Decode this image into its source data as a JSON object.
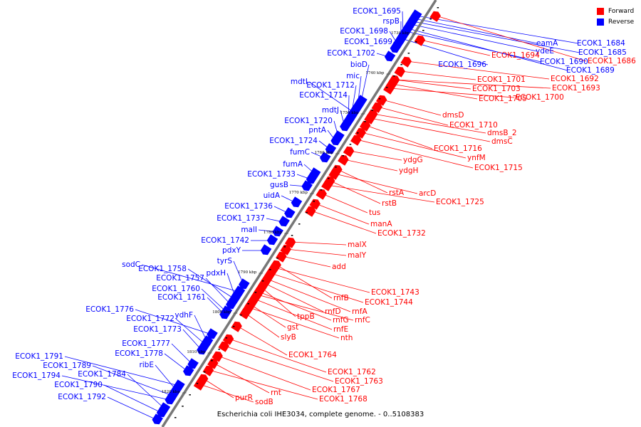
{
  "caption": "Escherichia coli IHE3034, complete genome. - 0..5108383",
  "legend": [
    {
      "label": "Forward",
      "color": "#ff0000"
    },
    {
      "label": "Reverse",
      "color": "#0000ff"
    }
  ],
  "ticks": [
    "1730 kbp",
    "1740 kbp",
    "1750 kbp",
    "1760 kbp",
    "1770 kbp",
    "1780 kbp",
    "1790 kbp",
    "1800 kbp",
    "1810 kbp",
    "1820 kbp"
  ],
  "genes": {
    "reverse": [
      "ECOK1_1695",
      "rspB",
      "ECOK1_1698",
      "ECOK1_1699",
      "ECOK1_1702",
      "bioD",
      "mic",
      "mdtI",
      "ECOK1_1712",
      "ECOK1_1714",
      "mdtJ",
      "ECOK1_1720",
      "pntA",
      "ECOK1_1724",
      "fumC",
      "fumA",
      "ECOK1_1733",
      "gusB",
      "uidA",
      "ECOK1_1736",
      "ECOK1_1737",
      "malI",
      "ECOK1_1742",
      "pdxY",
      "tyrS",
      "sodC",
      "ECOK1_1758",
      "pdxH",
      "ECOK1_1757",
      "ECOK1_1760",
      "ECOK1_1761",
      "ECOK1_1776",
      "ydhF",
      "ECOK1_1772",
      "ECOK1_1773",
      "ECOK1_1777",
      "ECOK1_1778",
      "ECOK1_1791",
      "ribE",
      "ECOK1_1789",
      "ECOK1_1794",
      "ECOK1_1784",
      "ECOK1_1790",
      "ECOK1_1792",
      "eamA",
      "ECOK1_1684",
      "ECOK1_1685",
      "ydeE",
      "ECOK1_1690",
      "ECOK1_1696",
      "ECOK1_1689"
    ],
    "forward": [
      "ECOK1_1686",
      "ECOK1_1694",
      "ECOK1_1692",
      "ECOK1_1701",
      "ECOK1_1703",
      "ECOK1_1693",
      "ECOK1_1705",
      "ECOK1_1700",
      "dmsD",
      "ECOK1_1710",
      "dmsB_2",
      "dmsC",
      "ECOK1_1716",
      "ynfM",
      "ECOK1_1715",
      "ydgG",
      "ydgH",
      "rstA",
      "arcD",
      "rstB",
      "ECOK1_1725",
      "tus",
      "manA",
      "ECOK1_1732",
      "malX",
      "malY",
      "add",
      "rnfB",
      "ECOK1_1743",
      "ECOK1_1744",
      "rnfA",
      "rnfD",
      "tppB",
      "rnfG",
      "rnfC",
      "rnfE",
      "gst",
      "nth",
      "slyB",
      "ECOK1_1764",
      "ECOK1_1762",
      "ECOK1_1763",
      "ECOK1_1767",
      "rnt",
      "purR",
      "sodB",
      "ECOK1_1768"
    ]
  }
}
